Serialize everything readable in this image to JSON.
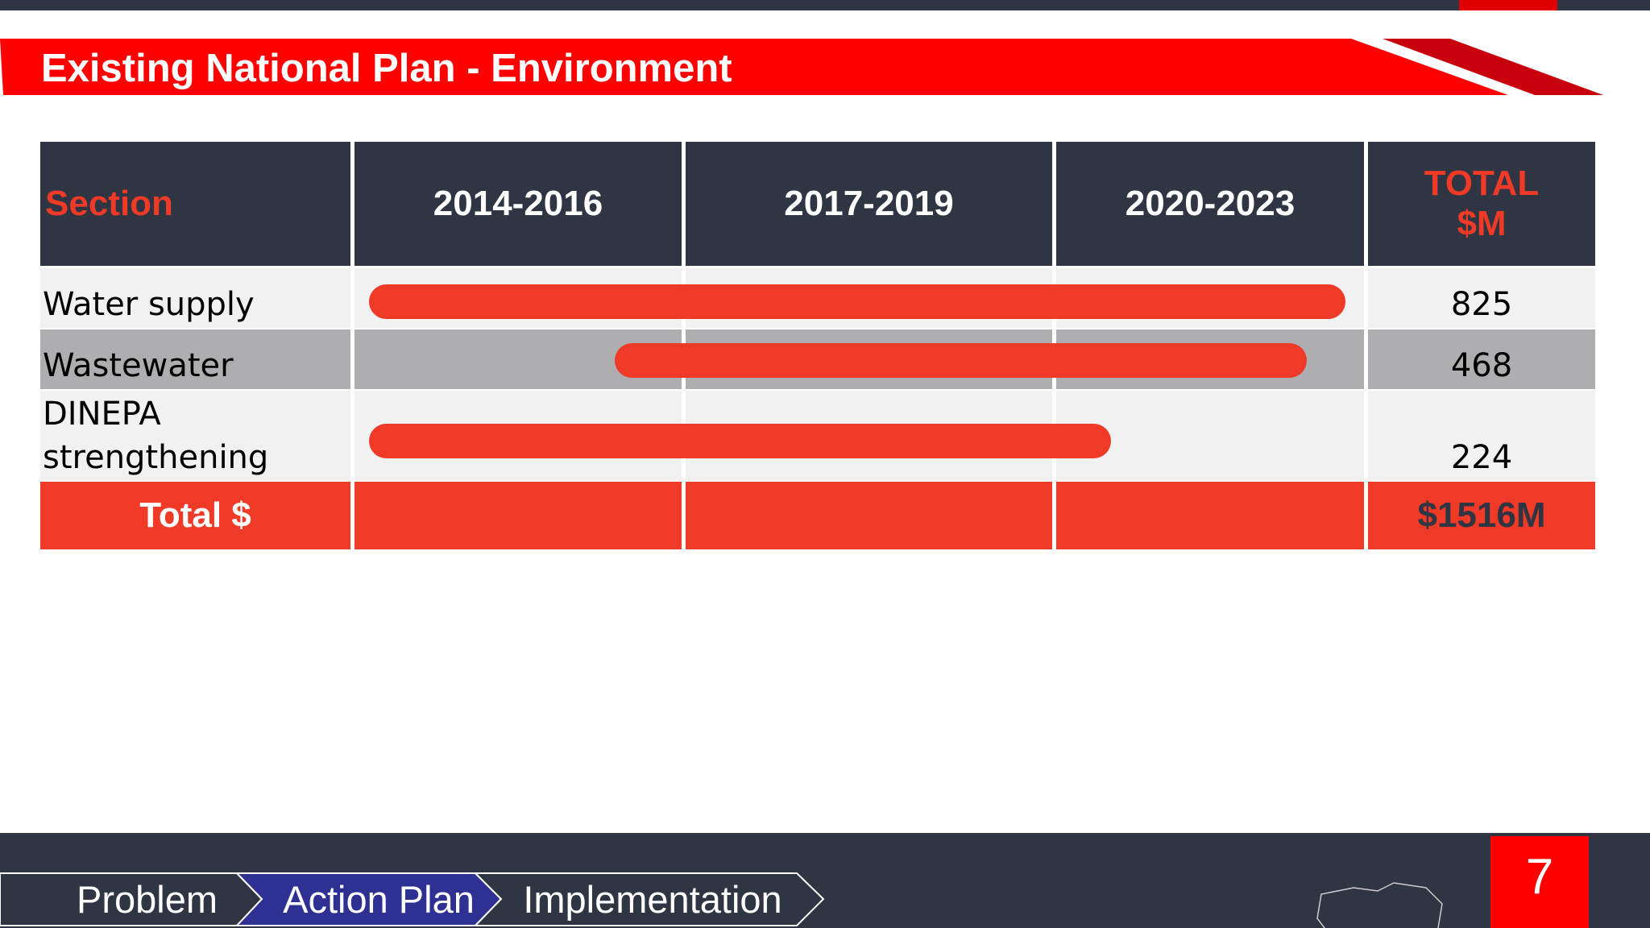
{
  "header": {
    "title": "Existing National Plan - Environment"
  },
  "table": {
    "columns": [
      "Section",
      "2014-2016",
      "2017-2019",
      "2020-2023",
      "TOTAL $M"
    ],
    "rows": [
      [
        "Water supply",
        825
      ],
      [
        "Wastewater",
        468
      ],
      [
        "DINEPA strengthening",
        224
      ]
    ],
    "total": {
      "label": "Total $",
      "value": "$1516M"
    }
  },
  "footer": {
    "nav": [
      "Problem",
      "Action Plan",
      "Implementation"
    ],
    "page": "7"
  }
}
